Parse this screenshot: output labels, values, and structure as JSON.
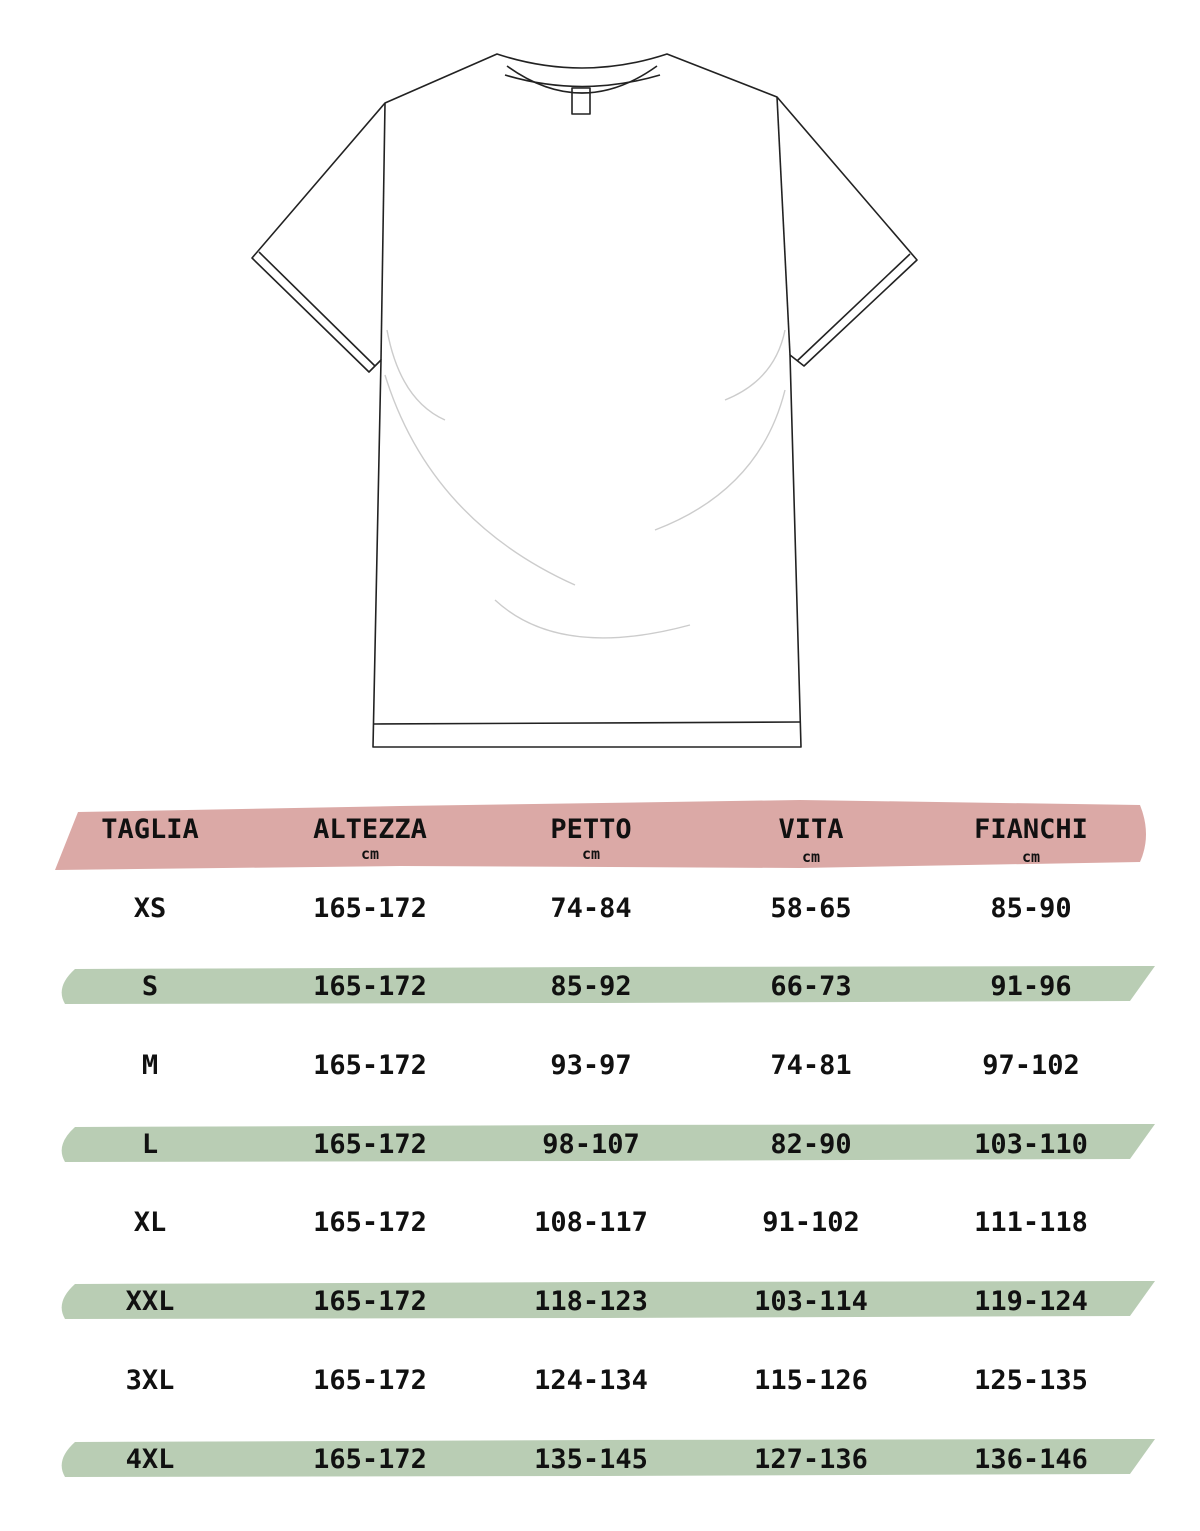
{
  "colors": {
    "header_stripe": "#dba9a6",
    "row_stripe": "#b9cdb4",
    "text": "#111111"
  },
  "illustration": "t-shirt-outline",
  "table": {
    "columns": [
      {
        "label": "TAGLIA",
        "unit": ""
      },
      {
        "label": "ALTEZZA",
        "unit": "cm"
      },
      {
        "label": "PETTO",
        "unit": "cm"
      },
      {
        "label": "VITA",
        "unit": "cm"
      },
      {
        "label": "FIANCHI",
        "unit": "cm"
      }
    ],
    "rows": [
      [
        "XS",
        "165-172",
        "74-84",
        "58-65",
        "85-90"
      ],
      [
        "S",
        "165-172",
        "85-92",
        "66-73",
        "91-96"
      ],
      [
        "M",
        "165-172",
        "93-97",
        "74-81",
        "97-102"
      ],
      [
        "L",
        "165-172",
        "98-107",
        "82-90",
        "103-110"
      ],
      [
        "XL",
        "165-172",
        "108-117",
        "91-102",
        "111-118"
      ],
      [
        "XXL",
        "165-172",
        "118-123",
        "103-114",
        "119-124"
      ],
      [
        "3XL",
        "165-172",
        "124-134",
        "115-126",
        "125-135"
      ],
      [
        "4XL",
        "165-172",
        "135-145",
        "127-136",
        "136-146"
      ]
    ]
  }
}
